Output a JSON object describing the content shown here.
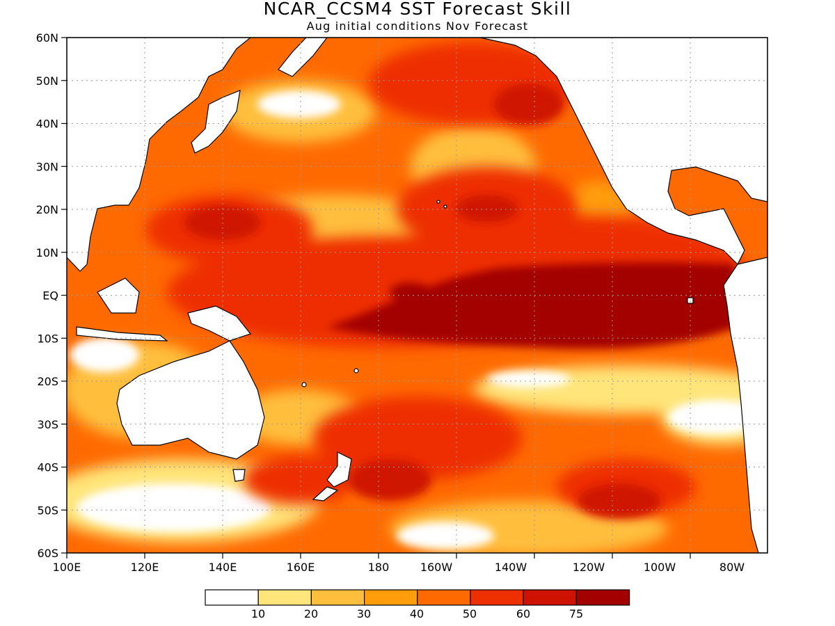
{
  "title": "NCAR_CCSM4  SST Forecast Skill",
  "subtitle": "Aug initial conditions  Nov Forecast",
  "map": {
    "lat_labels": [
      "60N",
      "50N",
      "40N",
      "30N",
      "20N",
      "10N",
      "EQ",
      "10S",
      "20S",
      "30S",
      "40S",
      "50S",
      "60S"
    ],
    "lon_labels": [
      "100E",
      "120E",
      "140E",
      "160E",
      "180",
      "160W",
      "140W",
      "120W",
      "100W",
      "80W"
    ],
    "land_color": "#ffffff",
    "coastline_color": "#000000",
    "grid": "dotted"
  },
  "legend": {
    "bins": [
      {
        "color": "#ffffff"
      },
      {
        "color": "#ffe57a"
      },
      {
        "color": "#ffbf3c"
      },
      {
        "color": "#ff9d0a"
      },
      {
        "color": "#ff6a00"
      },
      {
        "color": "#ee2f00"
      },
      {
        "color": "#cf1200"
      },
      {
        "color": "#a30000"
      }
    ],
    "labels": [
      "10",
      "20",
      "30",
      "40",
      "50",
      "60",
      "75"
    ]
  }
}
